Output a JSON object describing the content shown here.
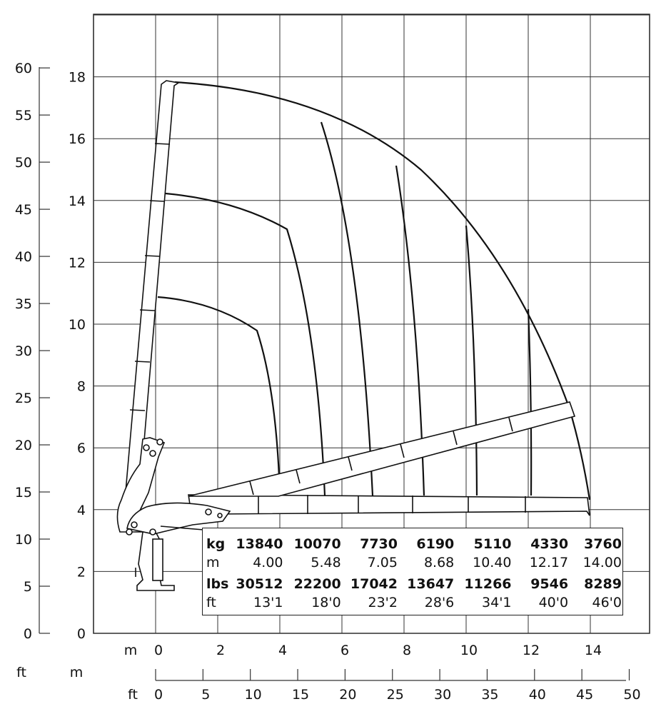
{
  "axes": {
    "left_ft_ticks": [
      "0",
      "5",
      "10",
      "15",
      "20",
      "25",
      "30",
      "35",
      "40",
      "45",
      "50",
      "55",
      "60"
    ],
    "left_m_ticks": [
      "0",
      "2",
      "4",
      "6",
      "8",
      "10",
      "12",
      "14",
      "16",
      "18"
    ],
    "bottom_m_unit": "m",
    "bottom_m_ticks": [
      "0",
      "2",
      "4",
      "6",
      "8",
      "10",
      "12",
      "14"
    ],
    "corner_ft_label": "ft",
    "corner_m_label": "m",
    "bottom_ft_unit": "ft",
    "bottom_ft_ticks": [
      "0",
      "5",
      "10",
      "15",
      "20",
      "25",
      "30",
      "35",
      "40",
      "45",
      "50"
    ]
  },
  "load_table": {
    "rows": [
      {
        "unit": "kg",
        "values": [
          "13840",
          "10070",
          "7730",
          "6190",
          "5110",
          "4330",
          "3760"
        ]
      },
      {
        "unit": "m",
        "values": [
          "4.00",
          "5.48",
          "7.05",
          "8.68",
          "10.40",
          "12.17",
          "14.00"
        ]
      },
      {
        "unit": "lbs",
        "values": [
          "30512",
          "22200",
          "17042",
          "13647",
          "11266",
          "9546",
          "8289"
        ]
      },
      {
        "unit": "ft",
        "values": [
          "13'1",
          "18'0",
          "23'2",
          "28'6",
          "34'1",
          "40'0",
          "46'0"
        ]
      }
    ]
  },
  "chart_data": {
    "type": "crane-load-range-diagram",
    "x_axis": {
      "unit": "m",
      "range": [
        0,
        14
      ],
      "secondary_unit": "ft",
      "secondary_range": [
        0,
        50
      ]
    },
    "y_axis": {
      "unit": "m",
      "range": [
        0,
        18
      ],
      "secondary_unit": "ft",
      "secondary_range": [
        0,
        60
      ]
    },
    "grid": true,
    "reach_curves": [
      {
        "reach_m": 4.0,
        "load_kg": 13840,
        "reach_ft": "13'1",
        "load_lbs": 30512
      },
      {
        "reach_m": 5.48,
        "load_kg": 10070,
        "reach_ft": "18'0",
        "load_lbs": 22200
      },
      {
        "reach_m": 7.05,
        "load_kg": 7730,
        "reach_ft": "23'2",
        "load_lbs": 17042
      },
      {
        "reach_m": 8.68,
        "load_kg": 6190,
        "reach_ft": "28'6",
        "load_lbs": 13647
      },
      {
        "reach_m": 10.4,
        "load_kg": 5110,
        "reach_ft": "34'1",
        "load_lbs": 11266
      },
      {
        "reach_m": 12.17,
        "load_kg": 4330,
        "reach_ft": "40'0",
        "load_lbs": 9546
      },
      {
        "reach_m": 14.0,
        "load_kg": 3760,
        "reach_ft": "46'0",
        "load_lbs": 8289
      }
    ]
  }
}
